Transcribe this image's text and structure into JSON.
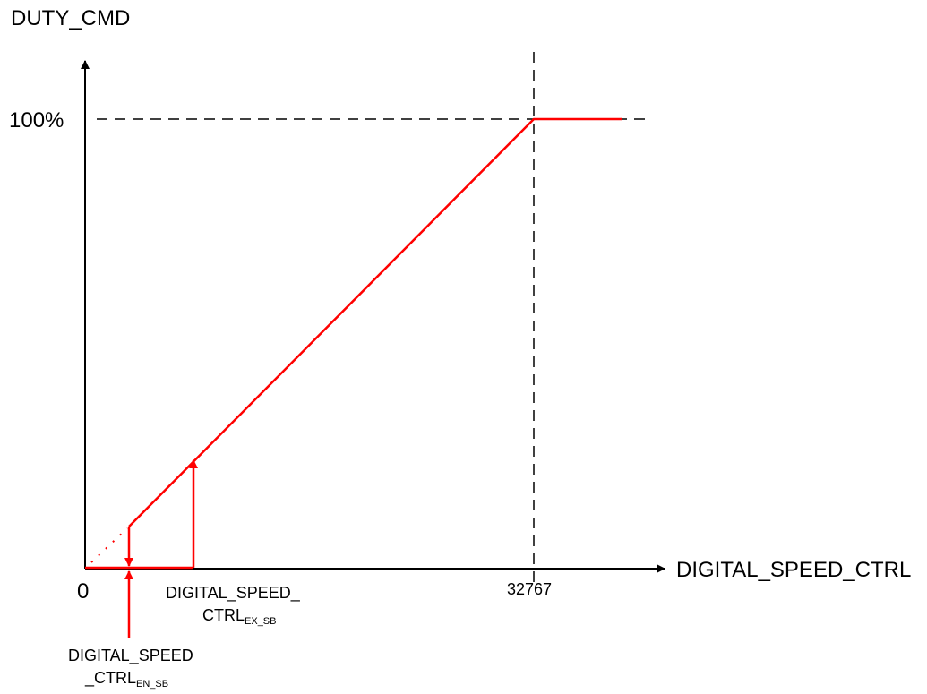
{
  "chart_data": {
    "type": "line",
    "ylabel": "DUTY_CMD",
    "xlabel": "DIGITAL_SPEED_CTRL",
    "x_ticks": [
      "0",
      "32767"
    ],
    "y_ticks": [
      "100%"
    ],
    "annotations": {
      "en_sb": {
        "main": "DIGITAL_SPEED",
        "prefix": "_CTRL",
        "sub": "EN_SB"
      },
      "ex_sb": {
        "main": "DIGITAL_SPEED_",
        "prefix": "CTRL",
        "sub": "EX_SB"
      }
    },
    "colors": {
      "curve": "#ff0000",
      "axis": "#000000",
      "guide": "#000000"
    }
  }
}
